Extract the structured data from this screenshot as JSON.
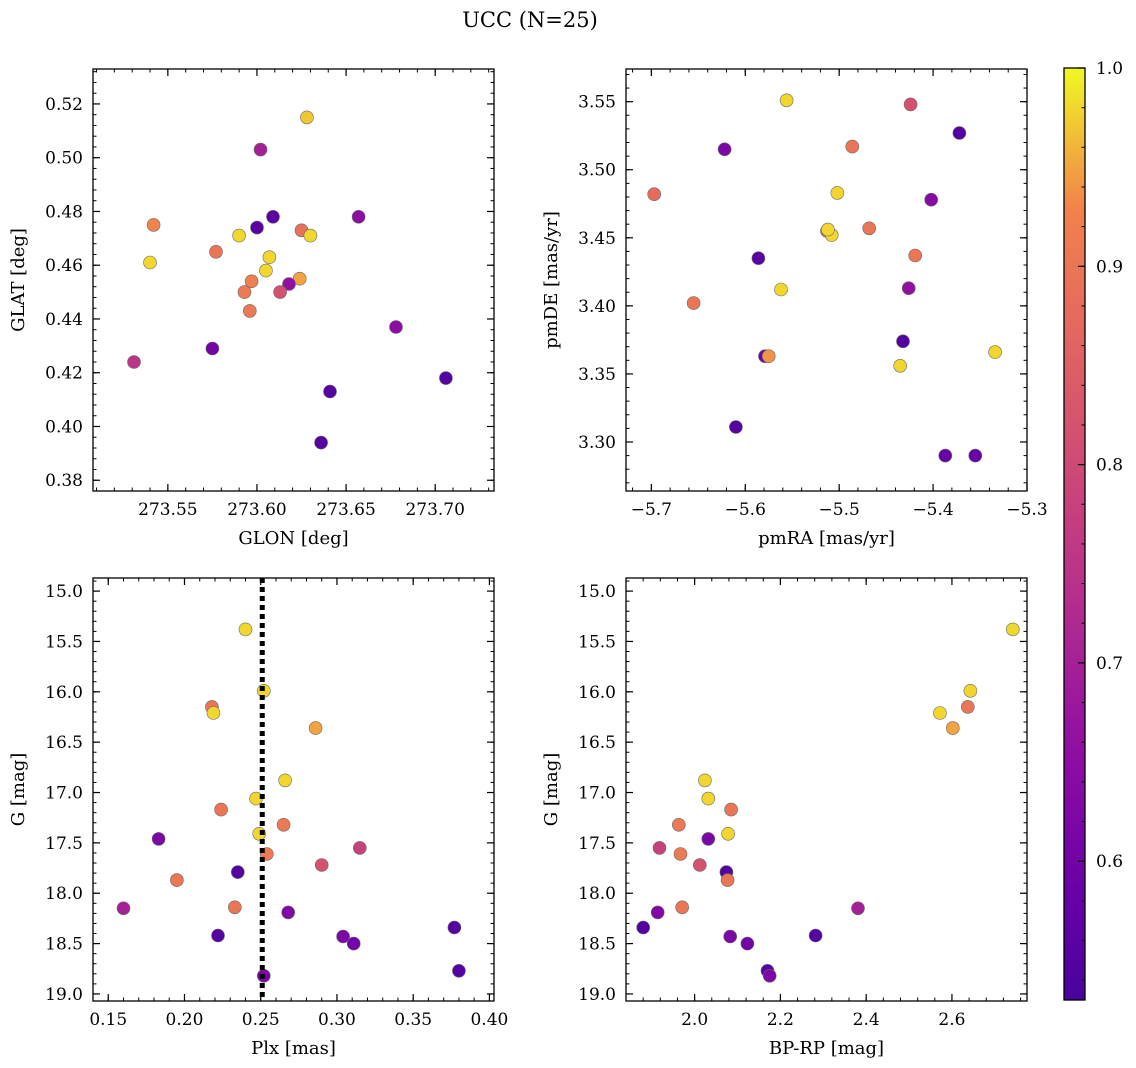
{
  "figure": {
    "title": "UCC (N=25)"
  },
  "colorbar": {
    "range": [
      0.53,
      1.0
    ],
    "ticks": [
      0.6,
      0.7,
      0.8,
      0.9,
      1.0
    ],
    "tick_labels": [
      "0.6",
      "0.7",
      "0.8",
      "0.9",
      "1.0"
    ],
    "colormap": "plasma"
  },
  "chart_data": [
    {
      "type": "scatter",
      "xlabel": "GLON [deg]",
      "ylabel": "GLAT [deg]",
      "xlim": [
        273.508,
        273.733
      ],
      "ylim": [
        0.376,
        0.533
      ],
      "xticks": [
        273.55,
        273.6,
        273.65,
        273.7
      ],
      "xtick_labels": [
        "273.55",
        "273.60",
        "273.65",
        "273.70"
      ],
      "yticks": [
        0.38,
        0.4,
        0.42,
        0.44,
        0.46,
        0.48,
        0.5,
        0.52
      ],
      "ytick_labels": [
        "0.38",
        "0.40",
        "0.42",
        "0.44",
        "0.46",
        "0.48",
        "0.50",
        "0.52"
      ],
      "x": [
        273.628,
        273.602,
        273.542,
        273.54,
        273.577,
        273.59,
        273.6,
        273.609,
        273.625,
        273.63,
        273.607,
        273.605,
        273.624,
        273.618,
        273.597,
        273.593,
        273.613,
        273.596,
        273.657,
        273.678,
        273.575,
        273.531,
        273.706,
        273.641,
        273.636
      ],
      "y": [
        0.515,
        0.503,
        0.475,
        0.461,
        0.465,
        0.471,
        0.474,
        0.478,
        0.473,
        0.471,
        0.463,
        0.458,
        0.455,
        0.453,
        0.454,
        0.45,
        0.45,
        0.443,
        0.478,
        0.437,
        0.429,
        0.424,
        0.418,
        0.413,
        0.394
      ],
      "c": [
        0.97,
        0.7,
        0.93,
        0.98,
        0.9,
        0.98,
        0.56,
        0.56,
        0.89,
        0.98,
        0.98,
        0.98,
        0.95,
        0.66,
        0.92,
        0.91,
        0.82,
        0.91,
        0.65,
        0.65,
        0.6,
        0.75,
        0.55,
        0.55,
        0.55
      ]
    },
    {
      "type": "scatter",
      "xlabel": "pmRA [mas/yr]",
      "ylabel": "pmDE [mas/yr]",
      "xlim": [
        -5.727,
        -5.3
      ],
      "ylim": [
        3.264,
        3.574
      ],
      "xticks": [
        -5.7,
        -5.6,
        -5.5,
        -5.4,
        -5.3
      ],
      "xtick_labels": [
        "−5.7",
        "−5.6",
        "−5.5",
        "−5.4",
        "−5.3"
      ],
      "yticks": [
        3.3,
        3.35,
        3.4,
        3.45,
        3.5,
        3.55
      ],
      "ytick_labels": [
        "3.30",
        "3.35",
        "3.40",
        "3.45",
        "3.50",
        "3.55"
      ],
      "x": [
        -5.556,
        -5.424,
        -5.372,
        -5.622,
        -5.486,
        -5.697,
        -5.502,
        -5.402,
        -5.513,
        -5.508,
        -5.468,
        -5.419,
        -5.586,
        -5.562,
        -5.655,
        -5.426,
        -5.579,
        -5.575,
        -5.432,
        -5.334,
        -5.435,
        -5.61,
        -5.387,
        -5.355,
        -5.512
      ],
      "y": [
        3.551,
        3.548,
        3.527,
        3.515,
        3.517,
        3.482,
        3.483,
        3.478,
        3.455,
        3.452,
        3.457,
        3.437,
        3.435,
        3.412,
        3.402,
        3.413,
        3.363,
        3.363,
        3.374,
        3.366,
        3.356,
        3.311,
        3.29,
        3.29,
        3.456
      ],
      "c": [
        0.98,
        0.82,
        0.55,
        0.62,
        0.9,
        0.88,
        0.98,
        0.64,
        0.87,
        0.98,
        0.9,
        0.9,
        0.56,
        0.98,
        0.9,
        0.66,
        0.6,
        0.94,
        0.55,
        0.98,
        0.98,
        0.55,
        0.58,
        0.58,
        0.98
      ]
    },
    {
      "type": "scatter",
      "xlabel": "Plx [mas]",
      "ylabel": "G [mag]",
      "xlim": [
        0.14,
        0.403
      ],
      "ylim": [
        19.07,
        14.87
      ],
      "y_inverted": true,
      "vline_x": 0.251,
      "xticks": [
        0.15,
        0.2,
        0.25,
        0.3,
        0.35,
        0.4
      ],
      "xtick_labels": [
        "0.15",
        "0.20",
        "0.25",
        "0.30",
        "0.35",
        "0.40"
      ],
      "yticks": [
        15.0,
        15.5,
        16.0,
        16.5,
        17.0,
        17.5,
        18.0,
        18.5,
        19.0
      ],
      "ytick_labels": [
        "15.0",
        "15.5",
        "16.0",
        "16.5",
        "17.0",
        "17.5",
        "18.0",
        "18.5",
        "19.0"
      ],
      "x": [
        0.24,
        0.252,
        0.218,
        0.219,
        0.286,
        0.266,
        0.247,
        0.224,
        0.265,
        0.249,
        0.254,
        0.183,
        0.315,
        0.29,
        0.235,
        0.195,
        0.233,
        0.16,
        0.268,
        0.222,
        0.304,
        0.311,
        0.377,
        0.38,
        0.252
      ],
      "y": [
        15.38,
        15.99,
        16.15,
        16.21,
        16.36,
        16.88,
        17.06,
        17.17,
        17.32,
        17.41,
        17.61,
        17.46,
        17.55,
        17.72,
        17.79,
        17.87,
        18.14,
        18.15,
        18.19,
        18.42,
        18.43,
        18.5,
        18.34,
        18.77,
        18.82
      ],
      "c": [
        0.98,
        0.98,
        0.9,
        0.98,
        0.95,
        0.98,
        0.98,
        0.9,
        0.91,
        0.98,
        0.91,
        0.62,
        0.78,
        0.82,
        0.55,
        0.9,
        0.9,
        0.7,
        0.63,
        0.55,
        0.62,
        0.6,
        0.55,
        0.55,
        0.62
      ]
    },
    {
      "type": "scatter",
      "xlabel": "BP-RP [mag]",
      "ylabel": "G [mag]",
      "xlim": [
        1.84,
        2.775
      ],
      "ylim": [
        19.07,
        14.87
      ],
      "y_inverted": true,
      "xticks": [
        2.0,
        2.2,
        2.4,
        2.6
      ],
      "xtick_labels": [
        "2.0",
        "2.2",
        "2.4",
        "2.6"
      ],
      "yticks": [
        15.0,
        15.5,
        16.0,
        16.5,
        17.0,
        17.5,
        18.0,
        18.5,
        19.0
      ],
      "ytick_labels": [
        "15.0",
        "15.5",
        "16.0",
        "16.5",
        "17.0",
        "17.5",
        "18.0",
        "18.5",
        "19.0"
      ],
      "x": [
        2.742,
        2.643,
        2.637,
        2.572,
        2.602,
        2.024,
        2.032,
        2.085,
        1.963,
        2.078,
        2.032,
        1.918,
        1.967,
        2.012,
        2.074,
        2.077,
        1.971,
        1.914,
        2.381,
        1.88,
        2.083,
        2.123,
        2.282,
        2.17,
        2.175
      ],
      "y": [
        15.38,
        15.99,
        16.15,
        16.21,
        16.36,
        16.88,
        17.06,
        17.17,
        17.32,
        17.41,
        17.46,
        17.55,
        17.61,
        17.72,
        17.79,
        17.87,
        18.14,
        18.19,
        18.15,
        18.34,
        18.43,
        18.5,
        18.42,
        18.77,
        18.82
      ],
      "c": [
        0.98,
        0.98,
        0.9,
        0.98,
        0.95,
        0.98,
        0.98,
        0.9,
        0.91,
        0.98,
        0.62,
        0.78,
        0.91,
        0.82,
        0.55,
        0.9,
        0.9,
        0.63,
        0.7,
        0.55,
        0.62,
        0.6,
        0.55,
        0.55,
        0.62
      ]
    }
  ]
}
